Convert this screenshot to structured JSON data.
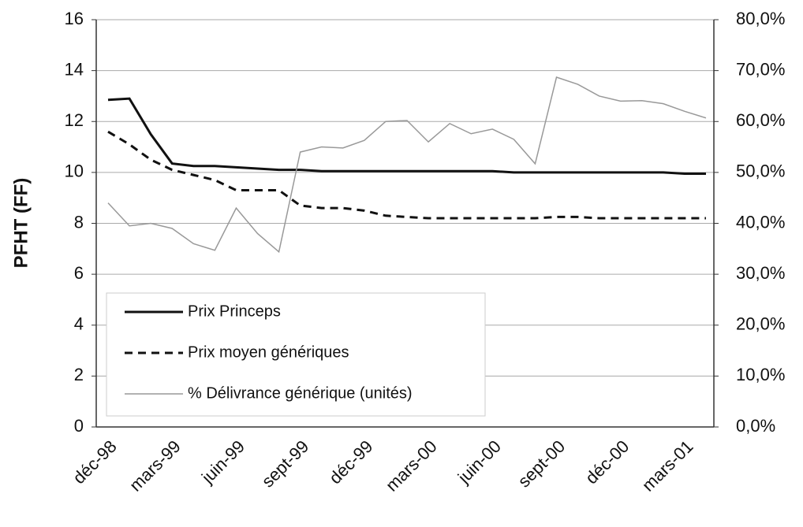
{
  "chart_data": {
    "type": "line",
    "y_label": "PFHT (FF)",
    "categories": [
      "déc-98",
      null,
      null,
      "mars-99",
      null,
      null,
      "juin-99",
      null,
      null,
      "sept-99",
      null,
      null,
      "déc-99",
      null,
      null,
      "mars-00",
      null,
      null,
      "juin-00",
      null,
      null,
      "sept-00",
      null,
      null,
      "déc-00",
      null,
      null,
      "mars-01",
      null
    ],
    "ylim": [
      0,
      16
    ],
    "yticks": [
      0,
      2,
      4,
      6,
      8,
      10,
      12,
      14,
      16
    ],
    "y2lim": [
      0,
      80
    ],
    "y2ticks": [
      {
        "value": 0,
        "label": "0,0%"
      },
      {
        "value": 10,
        "label": "10,0%"
      },
      {
        "value": 20,
        "label": "20,0%"
      },
      {
        "value": 30,
        "label": "30,0%"
      },
      {
        "value": 40,
        "label": "40,0%"
      },
      {
        "value": 50,
        "label": "50,0%"
      },
      {
        "value": 60,
        "label": "60,0%"
      },
      {
        "value": 70,
        "label": "70,0%"
      },
      {
        "value": 80,
        "label": "80,0%"
      }
    ],
    "grid": true,
    "legend": "lower left",
    "series": [
      {
        "name": "Prix Princeps",
        "color": "#111111",
        "line_style": "solid",
        "values": [
          12.85,
          12.9,
          11.5,
          10.35,
          10.25,
          10.25,
          10.2,
          10.15,
          10.1,
          10.1,
          10.05,
          10.05,
          10.05,
          10.05,
          10.05,
          10.05,
          10.05,
          10.05,
          10.05,
          10.0,
          10.0,
          10.0,
          10.0,
          10.0,
          10.0,
          10.0,
          10.0,
          9.95,
          9.95
        ]
      },
      {
        "name": "Prix moyen génériques",
        "color": "#111111",
        "line_style": "dashed",
        "values": [
          11.6,
          11.1,
          10.5,
          10.1,
          9.9,
          9.7,
          9.3,
          9.3,
          9.3,
          8.7,
          8.6,
          8.6,
          8.5,
          8.3,
          8.25,
          8.2,
          8.2,
          8.2,
          8.2,
          8.2,
          8.2,
          8.25,
          8.25,
          8.2,
          8.2,
          8.2,
          8.2,
          8.2,
          8.2
        ]
      },
      {
        "name": "% Délivrance générique (unités)",
        "color": "#999999",
        "line_style": "solid",
        "axis": "y2",
        "values": [
          44,
          39.5,
          40,
          39,
          36,
          34.7,
          43,
          38,
          34.4,
          54,
          55,
          54.8,
          56.3,
          60,
          60.2,
          56,
          59.6,
          57.6,
          58.5,
          56.5,
          51.7,
          68.7,
          67.3,
          65,
          64,
          64.1,
          63.5,
          62,
          60.7
        ]
      }
    ]
  }
}
